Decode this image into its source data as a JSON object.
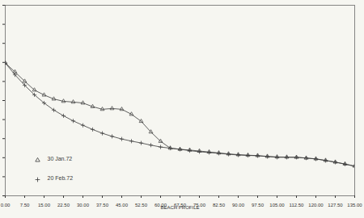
{
  "chart_data": {
    "type": "line",
    "x_label": "BEACH PROFILE",
    "x": [
      0,
      3.75,
      7.5,
      11.25,
      15,
      18.75,
      22.5,
      26.25,
      30,
      33.75,
      37.5,
      41.25,
      45,
      48.75,
      52.5,
      56.25,
      60,
      63.75,
      67.5,
      71.25,
      75,
      78.75,
      82.5,
      86.25,
      90,
      93.75,
      97.5,
      101.25,
      105,
      108.75,
      112.5,
      116.25,
      120,
      123.75,
      127.5,
      131.25,
      135
    ],
    "series": [
      {
        "name": "30 Jan.72",
        "color": "#3a3a3a",
        "marker": "triangle",
        "line_style": "solid",
        "values": [
          6.97,
          6.5,
          6.01,
          5.55,
          5.29,
          5.08,
          4.96,
          4.92,
          4.87,
          4.68,
          4.54,
          4.58,
          4.54,
          4.28,
          3.91,
          3.35,
          2.86,
          2.5,
          2.44,
          2.4,
          2.35,
          2.3,
          2.25,
          2.2,
          2.16,
          2.13,
          2.11,
          2.07,
          2.04,
          2.03,
          2.02,
          1.98,
          1.94,
          1.86,
          1.77,
          1.67,
          1.56
        ]
      },
      {
        "name": "20 Feb.72",
        "color": "#3a3a3a",
        "marker": "plus",
        "line_style": "solid",
        "values": [
          6.97,
          6.35,
          5.8,
          5.3,
          4.87,
          4.5,
          4.2,
          3.93,
          3.7,
          3.48,
          3.28,
          3.12,
          2.98,
          2.87,
          2.77,
          2.66,
          2.56,
          2.5,
          2.44,
          2.37,
          2.31,
          2.27,
          2.23,
          2.18,
          2.14,
          2.12,
          2.1,
          2.06,
          2.02,
          2.02,
          2.02,
          1.98,
          1.93,
          1.85,
          1.76,
          1.66,
          1.55
        ]
      }
    ],
    "xlim": [
      0,
      135
    ],
    "xticks": [
      {
        "value": 0,
        "label": "0.00"
      },
      {
        "value": 7.5,
        "label": "7.50"
      },
      {
        "value": 15,
        "label": "15.00"
      },
      {
        "value": 22.5,
        "label": "22.50"
      },
      {
        "value": 30,
        "label": "30.00"
      },
      {
        "value": 37.5,
        "label": "37.50"
      },
      {
        "value": 45,
        "label": "45.00"
      },
      {
        "value": 52.5,
        "label": "52.50"
      },
      {
        "value": 60,
        "label": "60.00"
      },
      {
        "value": 67.5,
        "label": "67.50"
      },
      {
        "value": 75,
        "label": "75.00"
      },
      {
        "value": 82.5,
        "label": "82.50"
      },
      {
        "value": 90,
        "label": "90.00"
      },
      {
        "value": 97.5,
        "label": "97.50"
      },
      {
        "value": 105,
        "label": "105.00"
      },
      {
        "value": 112.5,
        "label": "112.50"
      },
      {
        "value": 120,
        "label": "120.00"
      },
      {
        "value": 127.5,
        "label": "127.50"
      },
      {
        "value": 135,
        "label": "135.00"
      }
    ],
    "ylim": [
      0,
      10
    ],
    "yticks": [
      0,
      1,
      2,
      3,
      4,
      5,
      6,
      7,
      8,
      9,
      10
    ],
    "tick_labels": "x",
    "grid": false,
    "legend": "bottom-left"
  }
}
